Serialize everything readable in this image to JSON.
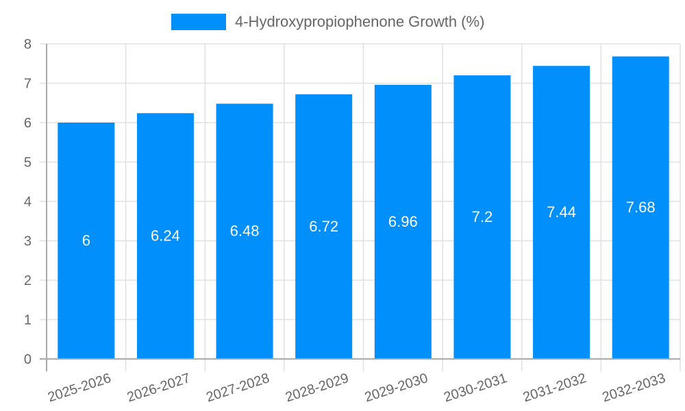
{
  "chart_data": {
    "type": "bar",
    "title": "",
    "categories": [
      "2025-2026",
      "2026-2027",
      "2027-2028",
      "2028-2029",
      "2029-2030",
      "2030-2031",
      "2031-2032",
      "2032-2033"
    ],
    "series": [
      {
        "name": "4-Hydroxypropiophenone Growth (%)",
        "color": "#008ffb",
        "values": [
          6,
          6.24,
          6.48,
          6.72,
          6.96,
          7.2,
          7.44,
          7.68
        ]
      }
    ],
    "data_labels": [
      "6",
      "6.24",
      "6.48",
      "6.72",
      "6.96",
      "7.2",
      "7.44",
      "7.68"
    ],
    "xlabel": "",
    "ylabel": "",
    "ylim": [
      0,
      8
    ],
    "yticks": [
      0,
      1,
      2,
      3,
      4,
      5,
      6,
      7,
      8
    ],
    "grid": true,
    "legend_position": "top"
  },
  "legend": {
    "label": "4-Hydroxypropiophenone Growth (%)",
    "color": "#008ffb"
  },
  "colors": {
    "bar": "#008ffb",
    "grid": "#e0e0e0",
    "axis": "#aaaaaa",
    "tick_text": "#666666",
    "data_label": "#ffffff"
  }
}
